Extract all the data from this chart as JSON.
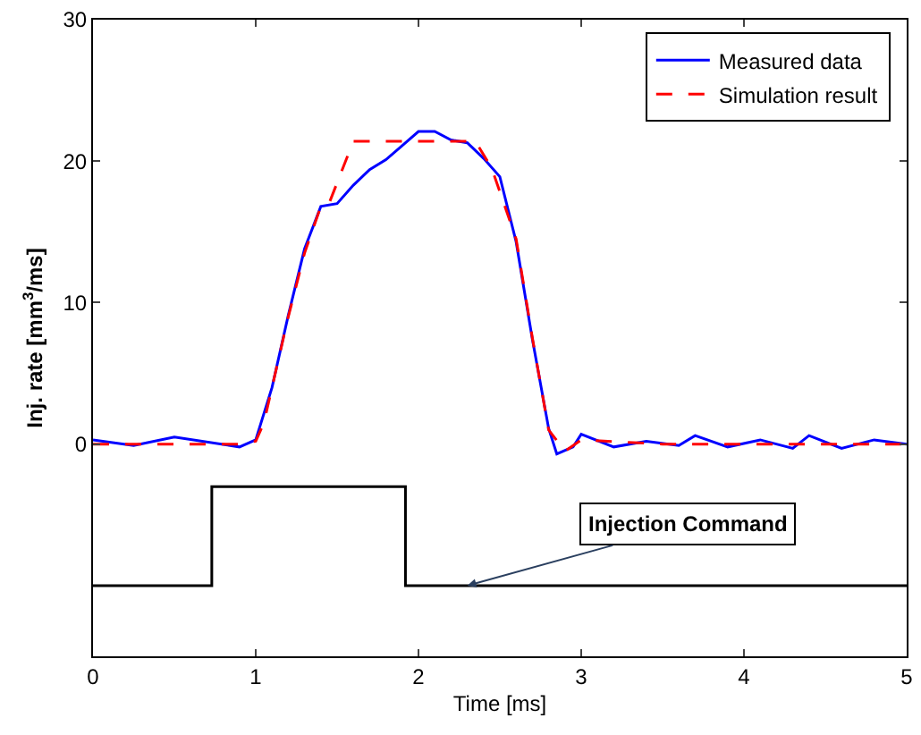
{
  "chart_data": {
    "type": "line",
    "xlabel": "Time [ms]",
    "ylabel": "Inj. rate [mm$^{3}$/ms]",
    "xlim": [
      0,
      5
    ],
    "xticks": [
      0,
      1,
      2,
      3,
      4,
      5
    ],
    "ylim": [
      -15,
      30
    ],
    "yticks": [
      0,
      10,
      20,
      30
    ],
    "legend": "top right",
    "marker": "none",
    "series": [
      {
        "name": "Measured data",
        "color": "#0000ff",
        "line_style": "solid",
        "x": [
          0,
          0.25,
          0.5,
          0.9,
          1.0,
          1.1,
          1.2,
          1.3,
          1.4,
          1.5,
          1.6,
          1.7,
          1.8,
          1.9,
          2.0,
          2.1,
          2.2,
          2.3,
          2.4,
          2.5,
          2.6,
          2.7,
          2.8,
          2.85,
          2.95,
          3.0,
          3.2,
          3.4,
          3.6,
          3.7,
          3.9,
          4.1,
          4.3,
          4.4,
          4.6,
          4.8,
          5.0
        ],
        "values": [
          0.3,
          -0.1,
          0.5,
          -0.2,
          0.3,
          4.0,
          9.1,
          13.8,
          16.8,
          17.0,
          18.3,
          19.4,
          20.1,
          21.1,
          22.1,
          22.1,
          21.5,
          21.3,
          20.2,
          18.9,
          14.3,
          7.4,
          1.1,
          -0.7,
          -0.2,
          0.7,
          -0.2,
          0.2,
          -0.1,
          0.6,
          -0.2,
          0.3,
          -0.3,
          0.6,
          -0.3,
          0.3,
          0
        ]
      },
      {
        "name": "Simulation result",
        "color": "#ff0000",
        "line_style": "dashed",
        "x": [
          0,
          0.9,
          1.0,
          1.05,
          1.1,
          1.2,
          1.3,
          1.4,
          1.45,
          1.6,
          2.35,
          2.45,
          2.6,
          2.7,
          2.8,
          2.9,
          3.0,
          3.5,
          4.0,
          4.5,
          5.0
        ],
        "values": [
          0,
          0,
          0.2,
          1.5,
          4,
          9,
          13.5,
          16.8,
          17,
          21.4,
          21.4,
          19.5,
          14.5,
          7.5,
          1,
          -0.5,
          0.3,
          0,
          0,
          0,
          0
        ]
      },
      {
        "color": "#000000",
        "line_style": "solid",
        "type": "step",
        "x": [
          0,
          0.73,
          1.92,
          5
        ],
        "values": [
          -10,
          -3,
          -10,
          -10
        ]
      }
    ],
    "annotations": [
      {
        "text": "Injection Command",
        "x": 2.3,
        "y": -10
      }
    ]
  }
}
